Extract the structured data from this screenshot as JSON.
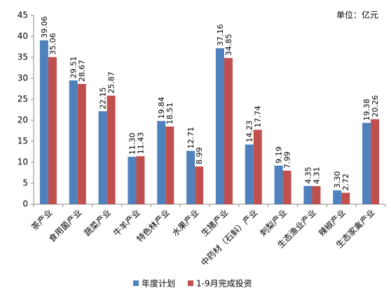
{
  "chart_data": {
    "type": "bar",
    "annotation": "单位：亿元",
    "categories": [
      "茶产业",
      "食用菌产业",
      "蔬菜产业",
      "牛羊产业",
      "特色林产业",
      "水果产业",
      "生猪产业",
      "中药材（石斛）产业",
      "刺梨产业",
      "生态渔业产业",
      "辣椒产业",
      "生态家禽产业"
    ],
    "series": [
      {
        "name": "年度计划",
        "color": "#4f81bd",
        "values": [
          39.06,
          29.51,
          22.15,
          11.3,
          19.84,
          12.71,
          37.16,
          14.23,
          9.19,
          4.35,
          3.3,
          19.38
        ],
        "value_labels": [
          "39.06",
          "29.51",
          "22.15",
          "11.30",
          "19.84",
          "12.71",
          "37.16",
          "14.23",
          "9.19",
          "4.35",
          "3.30",
          "19.38"
        ]
      },
      {
        "name": "1-9月完成投资",
        "color": "#c0504d",
        "values": [
          35.06,
          28.67,
          25.87,
          11.43,
          18.51,
          8.99,
          34.85,
          17.74,
          7.99,
          4.31,
          2.72,
          20.26
        ],
        "value_labels": [
          "35.06",
          "28.67",
          "25.87",
          "11.43",
          "18.51",
          "8.99",
          "34.85",
          "17.74",
          "7.99",
          "4.31",
          "2.72",
          "20.26"
        ]
      }
    ],
    "ylim": [
      0,
      45
    ],
    "yticks": [
      0,
      5,
      10,
      15,
      20,
      25,
      30,
      35,
      40,
      45
    ],
    "grid": false,
    "legend": "bottom"
  }
}
